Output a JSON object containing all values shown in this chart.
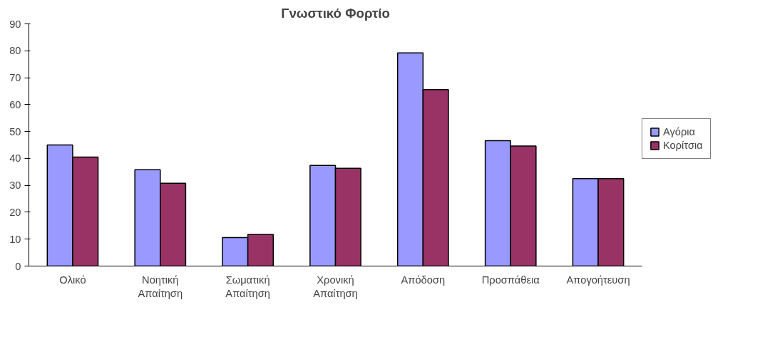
{
  "chart_data": {
    "type": "bar",
    "title": "Γνωστικό Φορτίο",
    "categories": [
      "Ολικό",
      "Νοητική Απαίτηση",
      "Σωματική Απαίτηση",
      "Χρονική Απαίτηση",
      "Απόδοση",
      "Προσπάθεια",
      "Απογοήτευση"
    ],
    "series": [
      {
        "name": "Αγόρια",
        "color": "#9999ff",
        "values": [
          45,
          35.8,
          10.6,
          37.4,
          79.2,
          46.6,
          32.5
        ]
      },
      {
        "name": "Κορίτσια",
        "color": "#993366",
        "values": [
          40.5,
          30.8,
          11.7,
          36.3,
          65.6,
          44.6,
          32.5
        ]
      }
    ],
    "ylim": [
      0,
      90
    ],
    "yticks": [
      0,
      10,
      20,
      30,
      40,
      50,
      60,
      70,
      80,
      90
    ],
    "grid": false,
    "legend": "right"
  }
}
